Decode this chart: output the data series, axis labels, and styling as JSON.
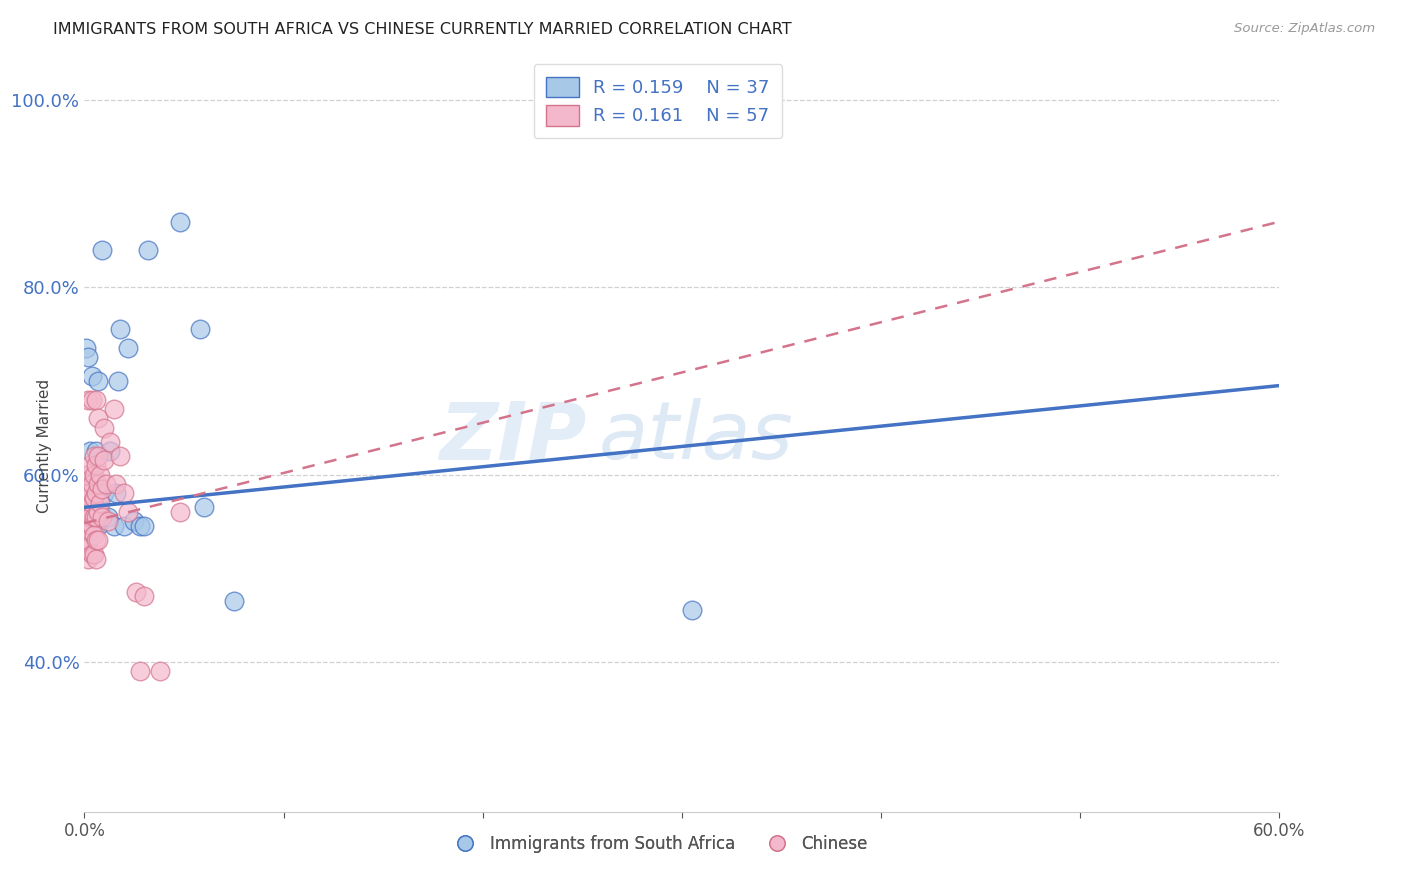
{
  "title": "IMMIGRANTS FROM SOUTH AFRICA VS CHINESE CURRENTLY MARRIED CORRELATION CHART",
  "source": "Source: ZipAtlas.com",
  "ylabel": "Currently Married",
  "legend_label_1": "Immigrants from South Africa",
  "legend_label_2": "Chinese",
  "r1": "0.159",
  "n1": "37",
  "r2": "0.161",
  "n2": "57",
  "color1": "#a8c8e8",
  "color2": "#f4b8cc",
  "line_color1": "#4472c4",
  "line_color2": "#d4748c",
  "watermark": "ZIPatlas",
  "xlim": [
    0.0,
    0.6
  ],
  "ylim": [
    0.24,
    1.04
  ],
  "xtick_positions": [
    0.0,
    0.1,
    0.2,
    0.3,
    0.4,
    0.5,
    0.6
  ],
  "xtick_labels": [
    "0.0%",
    "",
    "",
    "",
    "",
    "",
    "60.0%"
  ],
  "yticks": [
    0.4,
    0.6,
    0.8,
    1.0
  ],
  "scatter1_x": [
    0.001,
    0.001,
    0.002,
    0.002,
    0.003,
    0.003,
    0.003,
    0.004,
    0.004,
    0.004,
    0.005,
    0.005,
    0.005,
    0.006,
    0.006,
    0.007,
    0.007,
    0.008,
    0.009,
    0.01,
    0.012,
    0.013,
    0.015,
    0.016,
    0.017,
    0.018,
    0.02,
    0.022,
    0.025,
    0.028,
    0.03,
    0.032,
    0.048,
    0.058,
    0.06,
    0.075,
    0.305
  ],
  "scatter1_y": [
    0.565,
    0.735,
    0.59,
    0.725,
    0.545,
    0.58,
    0.625,
    0.555,
    0.585,
    0.705,
    0.545,
    0.565,
    0.595,
    0.545,
    0.625,
    0.545,
    0.7,
    0.56,
    0.84,
    0.58,
    0.555,
    0.625,
    0.545,
    0.58,
    0.7,
    0.755,
    0.545,
    0.735,
    0.55,
    0.545,
    0.545,
    0.84,
    0.87,
    0.755,
    0.565,
    0.465,
    0.455
  ],
  "scatter2_x": [
    0.001,
    0.001,
    0.001,
    0.001,
    0.002,
    0.002,
    0.002,
    0.002,
    0.002,
    0.002,
    0.003,
    0.003,
    0.003,
    0.003,
    0.003,
    0.003,
    0.004,
    0.004,
    0.004,
    0.004,
    0.004,
    0.005,
    0.005,
    0.005,
    0.005,
    0.005,
    0.005,
    0.006,
    0.006,
    0.006,
    0.006,
    0.006,
    0.006,
    0.007,
    0.007,
    0.007,
    0.007,
    0.007,
    0.008,
    0.008,
    0.009,
    0.009,
    0.01,
    0.01,
    0.011,
    0.012,
    0.013,
    0.015,
    0.016,
    0.018,
    0.02,
    0.022,
    0.026,
    0.028,
    0.03,
    0.038,
    0.048
  ],
  "scatter2_y": [
    0.56,
    0.54,
    0.52,
    0.6,
    0.57,
    0.55,
    0.53,
    0.51,
    0.6,
    0.68,
    0.58,
    0.56,
    0.54,
    0.61,
    0.58,
    0.555,
    0.59,
    0.57,
    0.545,
    0.515,
    0.68,
    0.6,
    0.575,
    0.555,
    0.535,
    0.515,
    0.62,
    0.61,
    0.58,
    0.555,
    0.53,
    0.68,
    0.51,
    0.62,
    0.59,
    0.56,
    0.53,
    0.66,
    0.6,
    0.57,
    0.585,
    0.555,
    0.65,
    0.615,
    0.59,
    0.55,
    0.635,
    0.67,
    0.59,
    0.62,
    0.58,
    0.56,
    0.475,
    0.39,
    0.47,
    0.39,
    0.56
  ],
  "trend1_x": [
    0.0,
    0.6
  ],
  "trend1_y": [
    0.565,
    0.695
  ],
  "trend2_x": [
    0.0,
    0.6
  ],
  "trend2_y": [
    0.548,
    0.87
  ]
}
